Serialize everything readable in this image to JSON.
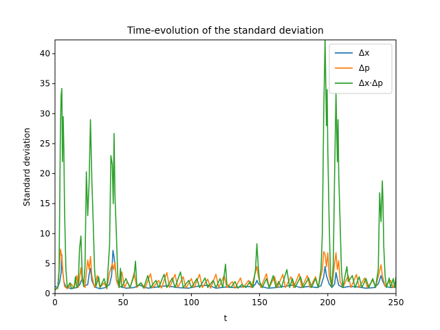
{
  "chart_data": {
    "type": "line",
    "title": "Time-evolution of the standard deviation",
    "xlabel": "t",
    "ylabel": "Standard deviation",
    "xlim": [
      0,
      250
    ],
    "ylim": [
      0,
      42.3
    ],
    "xticks": [
      0,
      50,
      100,
      150,
      200,
      250
    ],
    "yticks": [
      0,
      5,
      10,
      15,
      20,
      25,
      30,
      35,
      40
    ],
    "grid": false,
    "legend": "top-right",
    "series": [
      {
        "name": "Δx",
        "color": "#1f77b4",
        "points": [
          [
            0,
            1.2
          ],
          [
            2,
            1.0
          ],
          [
            3.5,
            2.0
          ],
          [
            4.5,
            3.5
          ],
          [
            5,
            6.5
          ],
          [
            5.5,
            4.0
          ],
          [
            6.5,
            2.0
          ],
          [
            8,
            1.1
          ],
          [
            12,
            0.8
          ],
          [
            16,
            1.0
          ],
          [
            18,
            1.4
          ],
          [
            20,
            2.6
          ],
          [
            21,
            1.2
          ],
          [
            24,
            1.5
          ],
          [
            25,
            3.2
          ],
          [
            26,
            4.2
          ],
          [
            27,
            2.2
          ],
          [
            29,
            1.1
          ],
          [
            33,
            0.8
          ],
          [
            37,
            1.0
          ],
          [
            40,
            1.5
          ],
          [
            41.5,
            3.0
          ],
          [
            42.5,
            7.2
          ],
          [
            43.5,
            5.8
          ],
          [
            45,
            2.4
          ],
          [
            47,
            1.2
          ],
          [
            52,
            0.9
          ],
          [
            58,
            1.0
          ],
          [
            62,
            1.4
          ],
          [
            68,
            0.9
          ],
          [
            75,
            1.1
          ],
          [
            82,
            1.3
          ],
          [
            90,
            1.0
          ],
          [
            98,
            0.9
          ],
          [
            104,
            1.2
          ],
          [
            112,
            1.4
          ],
          [
            118,
            0.9
          ],
          [
            125,
            1.1
          ],
          [
            132,
            1.0
          ],
          [
            140,
            1.2
          ],
          [
            145,
            1.1
          ],
          [
            147,
            1.6
          ],
          [
            148,
            2.2
          ],
          [
            149,
            1.7
          ],
          [
            151,
            1.2
          ],
          [
            156,
            0.9
          ],
          [
            162,
            1.0
          ],
          [
            168,
            1.2
          ],
          [
            174,
            1.4
          ],
          [
            180,
            1.0
          ],
          [
            186,
            1.2
          ],
          [
            192,
            1.0
          ],
          [
            195,
            1.3
          ],
          [
            197,
            2.8
          ],
          [
            198,
            4.5
          ],
          [
            199,
            3.0
          ],
          [
            201,
            1.6
          ],
          [
            203,
            1.0
          ],
          [
            205,
            1.6
          ],
          [
            206,
            3.5
          ],
          [
            207,
            2.4
          ],
          [
            208,
            1.4
          ],
          [
            211,
            1.0
          ],
          [
            216,
            1.2
          ],
          [
            222,
            1.1
          ],
          [
            228,
            0.9
          ],
          [
            234,
            1.0
          ],
          [
            237,
            1.6
          ],
          [
            239,
            3.0
          ],
          [
            240,
            2.2
          ],
          [
            242,
            1.2
          ],
          [
            246,
            1.0
          ],
          [
            250,
            1.1
          ]
        ]
      },
      {
        "name": "Δp",
        "color": "#ff7f0e",
        "points": [
          [
            0,
            0.6
          ],
          [
            2,
            0.9
          ],
          [
            3,
            3.5
          ],
          [
            4,
            7.4
          ],
          [
            5,
            6.0
          ],
          [
            6,
            3.0
          ],
          [
            7,
            1.2
          ],
          [
            9,
            0.8
          ],
          [
            12,
            1.6
          ],
          [
            14,
            0.9
          ],
          [
            16,
            3.0
          ],
          [
            17,
            1.0
          ],
          [
            19,
            4.3
          ],
          [
            20,
            2.0
          ],
          [
            22,
            1.0
          ],
          [
            23,
            3.6
          ],
          [
            24,
            5.6
          ],
          [
            25,
            4.0
          ],
          [
            26,
            6.2
          ],
          [
            27,
            3.0
          ],
          [
            29,
            1.0
          ],
          [
            31,
            3.0
          ],
          [
            33,
            1.0
          ],
          [
            36,
            1.8
          ],
          [
            38,
            0.8
          ],
          [
            40,
            3.5
          ],
          [
            42,
            5.0
          ],
          [
            43,
            4.0
          ],
          [
            44,
            5.2
          ],
          [
            45,
            2.2
          ],
          [
            47,
            1.0
          ],
          [
            49,
            3.6
          ],
          [
            51,
            1.0
          ],
          [
            53,
            2.0
          ],
          [
            55,
            0.9
          ],
          [
            58,
            3.4
          ],
          [
            60,
            1.0
          ],
          [
            63,
            1.8
          ],
          [
            66,
            0.9
          ],
          [
            70,
            3.3
          ],
          [
            72,
            1.0
          ],
          [
            76,
            2.2
          ],
          [
            78,
            0.9
          ],
          [
            82,
            3.5
          ],
          [
            84,
            1.0
          ],
          [
            88,
            3.2
          ],
          [
            90,
            1.0
          ],
          [
            94,
            2.8
          ],
          [
            96,
            0.9
          ],
          [
            100,
            2.5
          ],
          [
            102,
            1.0
          ],
          [
            106,
            3.2
          ],
          [
            108,
            1.0
          ],
          [
            112,
            2.4
          ],
          [
            114,
            0.9
          ],
          [
            118,
            3.2
          ],
          [
            120,
            1.0
          ],
          [
            124,
            3.0
          ],
          [
            126,
            1.0
          ],
          [
            130,
            2.0
          ],
          [
            132,
            0.9
          ],
          [
            136,
            2.6
          ],
          [
            138,
            1.0
          ],
          [
            142,
            2.2
          ],
          [
            144,
            1.0
          ],
          [
            148,
            4.5
          ],
          [
            149,
            3.0
          ],
          [
            151,
            1.0
          ],
          [
            155,
            3.3
          ],
          [
            157,
            1.0
          ],
          [
            161,
            2.8
          ],
          [
            163,
            1.0
          ],
          [
            167,
            3.2
          ],
          [
            169,
            1.0
          ],
          [
            173,
            2.8
          ],
          [
            175,
            1.0
          ],
          [
            179,
            3.3
          ],
          [
            181,
            1.0
          ],
          [
            185,
            3.0
          ],
          [
            187,
            1.0
          ],
          [
            191,
            2.8
          ],
          [
            193,
            1.0
          ],
          [
            196,
            4.0
          ],
          [
            197,
            7.0
          ],
          [
            198,
            6.5
          ],
          [
            199,
            4.5
          ],
          [
            200,
            6.8
          ],
          [
            201,
            3.0
          ],
          [
            203,
            1.0
          ],
          [
            205,
            5.0
          ],
          [
            206,
            6.8
          ],
          [
            207,
            4.0
          ],
          [
            208,
            5.5
          ],
          [
            209,
            2.0
          ],
          [
            211,
            1.0
          ],
          [
            215,
            3.0
          ],
          [
            217,
            1.0
          ],
          [
            221,
            3.2
          ],
          [
            223,
            1.0
          ],
          [
            227,
            2.6
          ],
          [
            229,
            1.0
          ],
          [
            233,
            2.2
          ],
          [
            235,
            1.0
          ],
          [
            238,
            3.8
          ],
          [
            239,
            4.8
          ],
          [
            240,
            3.0
          ],
          [
            242,
            1.2
          ],
          [
            246,
            2.2
          ],
          [
            248,
            1.0
          ],
          [
            250,
            2.0
          ]
        ]
      },
      {
        "name": "Δx·Δp",
        "color": "#2ca02c",
        "points": [
          [
            0,
            0.7
          ],
          [
            2,
            0.9
          ],
          [
            3,
            4.0
          ],
          [
            4,
            28
          ],
          [
            4.5,
            33
          ],
          [
            5,
            34.2
          ],
          [
            5.5,
            22
          ],
          [
            6,
            29.5
          ],
          [
            6.5,
            24
          ],
          [
            7,
            14
          ],
          [
            8,
            4
          ],
          [
            9,
            1.0
          ],
          [
            11,
            1.8
          ],
          [
            12,
            0.9
          ],
          [
            14,
            1.0
          ],
          [
            15,
            2.8
          ],
          [
            16,
            1.0
          ],
          [
            17,
            1.5
          ],
          [
            18,
            7.5
          ],
          [
            19,
            9.6
          ],
          [
            20,
            3.0
          ],
          [
            21,
            1.2
          ],
          [
            22,
            4.5
          ],
          [
            23,
            20.3
          ],
          [
            24,
            13.0
          ],
          [
            25,
            18.5
          ],
          [
            26,
            29.0
          ],
          [
            27,
            19.0
          ],
          [
            28,
            12.0
          ],
          [
            29,
            4.0
          ],
          [
            30,
            1.2
          ],
          [
            32,
            2.8
          ],
          [
            33,
            1.0
          ],
          [
            36,
            2.5
          ],
          [
            38,
            0.9
          ],
          [
            40,
            8.0
          ],
          [
            41,
            23.0
          ],
          [
            42,
            21.5
          ],
          [
            42.7,
            15.0
          ],
          [
            43.3,
            26.7
          ],
          [
            44,
            16.0
          ],
          [
            45,
            10.0
          ],
          [
            46,
            3.0
          ],
          [
            47,
            1.0
          ],
          [
            48,
            4.2
          ],
          [
            49,
            1.0
          ],
          [
            52,
            2.5
          ],
          [
            55,
            1.0
          ],
          [
            58,
            3.0
          ],
          [
            59,
            5.4
          ],
          [
            60,
            1.2
          ],
          [
            63,
            1.8
          ],
          [
            65,
            0.9
          ],
          [
            68,
            3.0
          ],
          [
            70,
            1.0
          ],
          [
            74,
            2.2
          ],
          [
            76,
            1.0
          ],
          [
            80,
            3.2
          ],
          [
            82,
            1.0
          ],
          [
            86,
            2.6
          ],
          [
            88,
            1.0
          ],
          [
            92,
            3.6
          ],
          [
            94,
            1.0
          ],
          [
            98,
            2.2
          ],
          [
            100,
            1.0
          ],
          [
            104,
            2.5
          ],
          [
            106,
            1.0
          ],
          [
            110,
            2.6
          ],
          [
            112,
            1.0
          ],
          [
            116,
            2.2
          ],
          [
            118,
            1.0
          ],
          [
            121,
            2.5
          ],
          [
            123,
            1.0
          ],
          [
            124,
            3.0
          ],
          [
            125,
            4.9
          ],
          [
            126,
            1.5
          ],
          [
            129,
            1.0
          ],
          [
            132,
            2.0
          ],
          [
            134,
            0.9
          ],
          [
            137,
            1.5
          ],
          [
            140,
            1.0
          ],
          [
            143,
            2.0
          ],
          [
            145,
            1.0
          ],
          [
            147,
            4.0
          ],
          [
            148,
            8.3
          ],
          [
            149,
            4.5
          ],
          [
            150,
            2.0
          ],
          [
            152,
            1.0
          ],
          [
            155,
            2.5
          ],
          [
            157,
            1.0
          ],
          [
            160,
            3.0
          ],
          [
            162,
            1.0
          ],
          [
            164,
            2.0
          ],
          [
            166,
            1.0
          ],
          [
            170,
            4.0
          ],
          [
            172,
            1.0
          ],
          [
            174,
            2.5
          ],
          [
            176,
            1.0
          ],
          [
            180,
            2.8
          ],
          [
            182,
            1.0
          ],
          [
            186,
            2.6
          ],
          [
            188,
            1.0
          ],
          [
            191,
            2.5
          ],
          [
            193,
            1.0
          ],
          [
            195,
            4.0
          ],
          [
            196,
            10.0
          ],
          [
            197,
            30.0
          ],
          [
            198,
            42.3
          ],
          [
            199,
            28.0
          ],
          [
            199.5,
            34.0
          ],
          [
            200,
            24.0
          ],
          [
            201,
            12.0
          ],
          [
            202,
            3.0
          ],
          [
            203,
            1.0
          ],
          [
            204,
            5.0
          ],
          [
            205,
            20.0
          ],
          [
            206,
            33.5
          ],
          [
            207,
            22.0
          ],
          [
            207.5,
            29.0
          ],
          [
            208,
            20.0
          ],
          [
            209,
            12.0
          ],
          [
            210,
            4.0
          ],
          [
            211,
            1.0
          ],
          [
            214,
            4.5
          ],
          [
            215,
            2.0
          ],
          [
            218,
            3.0
          ],
          [
            220,
            1.0
          ],
          [
            223,
            2.8
          ],
          [
            225,
            1.0
          ],
          [
            228,
            2.5
          ],
          [
            230,
            1.0
          ],
          [
            233,
            2.5
          ],
          [
            235,
            1.0
          ],
          [
            237,
            4.0
          ],
          [
            238,
            16.8
          ],
          [
            239,
            12.0
          ],
          [
            240,
            18.8
          ],
          [
            240.5,
            15.0
          ],
          [
            241,
            8.0
          ],
          [
            242,
            3.0
          ],
          [
            243,
            1.0
          ],
          [
            245,
            2.6
          ],
          [
            246,
            1.0
          ],
          [
            248,
            2.5
          ],
          [
            249,
            1.0
          ],
          [
            250,
            2.8
          ]
        ]
      }
    ]
  }
}
